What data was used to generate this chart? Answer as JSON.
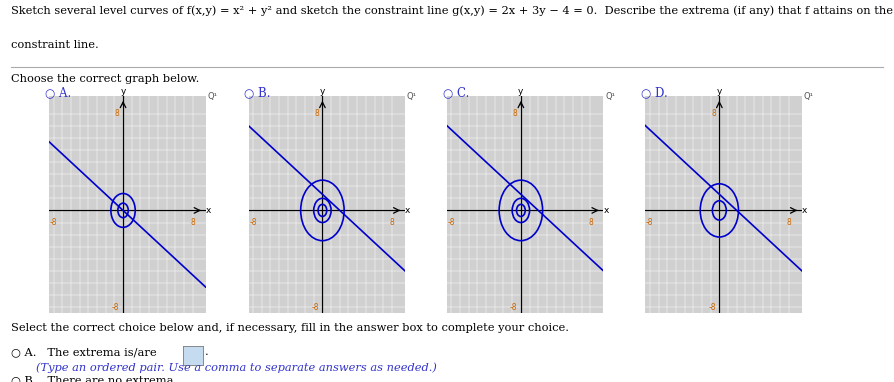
{
  "bg_color": "#FFFFFF",
  "graph_color": "#0000CC",
  "label_color": "#CC6600",
  "option_color": "#3333CC",
  "graph_bg": "#D0D0D0",
  "grid_line_color": "#FFFFFF",
  "circle_sets": [
    [
      0.6,
      1.4
    ],
    [
      0.5,
      1.0,
      2.5
    ],
    [
      0.5,
      1.0,
      2.5
    ],
    [
      0.8,
      2.2
    ]
  ],
  "line_params": [
    [
      -0.6667,
      0.0
    ],
    [
      -0.6667,
      1.333
    ],
    [
      -0.6667,
      1.333
    ],
    [
      -0.6667,
      1.333
    ]
  ],
  "options": [
    "A.",
    "B.",
    "C.",
    "D."
  ],
  "xlim": [
    -8.5,
    9.5
  ],
  "ylim": [
    -8.5,
    9.5
  ]
}
